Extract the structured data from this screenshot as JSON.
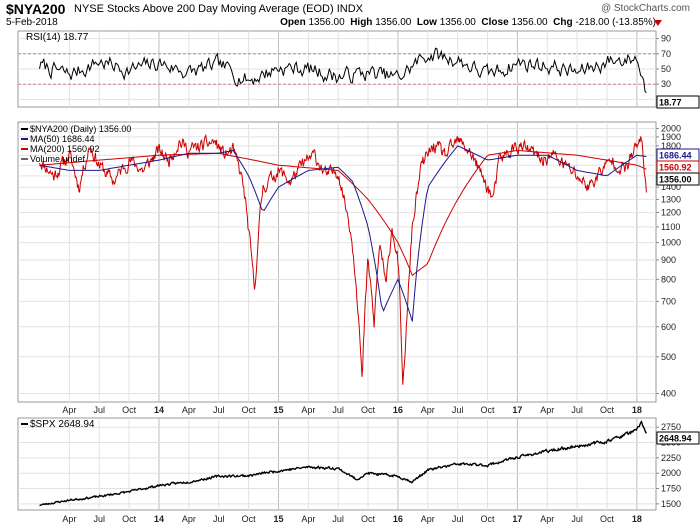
{
  "header": {
    "ticker": "$NYA200",
    "description": "NYSE Stocks Above 200 Day Moving Average (EOD)",
    "exchange": "INDX",
    "copyright": "@ StockCharts.com",
    "date": "5-Feb-2018",
    "open_label": "Open",
    "open_value": "1356.00",
    "high_label": "High",
    "high_value": "1356.00",
    "low_label": "Low",
    "low_value": "1356.00",
    "close_label": "Close",
    "close_value": "1356.00",
    "chg_label": "Chg",
    "chg_value": "-218.00 (-13.85%)",
    "down_color": "#cc0000"
  },
  "chart_data": [
    {
      "type": "line",
      "panel": "rsi",
      "legend": "RSI(14) 18.77",
      "yticks": [
        "90",
        "70",
        "50",
        "30",
        "10"
      ],
      "ylim": [
        0,
        100
      ],
      "overbought": 70,
      "oversold": 30,
      "last_value": "18.77",
      "series": [
        {
          "name": "RSI(14)",
          "x": [
            2013.0,
            2013.25,
            2013.5,
            2013.75,
            2014.0,
            2014.25,
            2014.5,
            2014.75,
            2015.0,
            2015.25,
            2015.5,
            2015.75,
            2016.0,
            2016.25,
            2016.5,
            2016.75,
            2017.0,
            2017.25,
            2017.5,
            2017.75,
            2018.0,
            2018.08
          ],
          "values": [
            55,
            42,
            60,
            48,
            58,
            45,
            55,
            35,
            52,
            50,
            40,
            45,
            38,
            70,
            62,
            42,
            58,
            55,
            45,
            60,
            65,
            18.77
          ]
        }
      ]
    },
    {
      "type": "line",
      "panel": "price",
      "scale": "log",
      "yticks": [
        "2000",
        "1900",
        "1800",
        "1700",
        "1600",
        "1500",
        "1400",
        "1300",
        "1200",
        "1100",
        "1000",
        "900",
        "800",
        "700",
        "600",
        "500",
        "400"
      ],
      "ylim": [
        380,
        2080
      ],
      "legend": [
        {
          "label": "$NYA200 (Daily) 1356.00",
          "color": "#000000"
        },
        {
          "label": "MA(50) 1686.44",
          "color": "#1a1a8c"
        },
        {
          "label": "MA(200) 1560.92",
          "color": "#cc0000"
        },
        {
          "label": "Volume undef",
          "color": "#666666"
        }
      ],
      "last_labels": [
        {
          "text": "1686.44",
          "value": 1686.44,
          "color": "#1a1a8c"
        },
        {
          "text": "1560.92",
          "value": 1560.92,
          "color": "#cc0000"
        },
        {
          "text": "1356.00",
          "value": 1356.0,
          "color": "#000000"
        }
      ],
      "series": [
        {
          "name": "$NYA200",
          "color": "#cc0000",
          "x": [
            2013.0,
            2013.12,
            2013.25,
            2013.33,
            2013.42,
            2013.5,
            2013.62,
            2013.75,
            2013.87,
            2014.0,
            2014.08,
            2014.17,
            2014.25,
            2014.37,
            2014.46,
            2014.55,
            2014.62,
            2014.7,
            2014.76,
            2014.8,
            2014.87,
            2015.0,
            2015.1,
            2015.2,
            2015.3,
            2015.4,
            2015.5,
            2015.55,
            2015.6,
            2015.65,
            2015.7,
            2015.75,
            2015.8,
            2015.85,
            2015.9,
            2015.95,
            2016.0,
            2016.04,
            2016.08,
            2016.12,
            2016.2,
            2016.3,
            2016.4,
            2016.5,
            2016.6,
            2016.7,
            2016.8,
            2016.85,
            2016.9,
            2017.0,
            2017.1,
            2017.2,
            2017.3,
            2017.4,
            2017.5,
            2017.55,
            2017.6,
            2017.7,
            2017.8,
            2017.9,
            2018.0,
            2018.04,
            2018.08
          ],
          "values": [
            1650,
            1500,
            1700,
            1400,
            1800,
            1600,
            1450,
            1650,
            1550,
            1750,
            1650,
            1850,
            1750,
            1800,
            1850,
            1700,
            1750,
            1450,
            1000,
            740,
            1400,
            1550,
            1450,
            1600,
            1700,
            1500,
            1550,
            1300,
            1100,
            800,
            420,
            900,
            600,
            1000,
            750,
            1100,
            900,
            400,
            650,
            1100,
            1600,
            1800,
            1700,
            1850,
            1750,
            1500,
            1300,
            1650,
            1700,
            1800,
            1750,
            1650,
            1700,
            1600,
            1500,
            1450,
            1400,
            1550,
            1650,
            1550,
            1800,
            1850,
            1356
          ]
        },
        {
          "name": "MA(50)",
          "color": "#1a1a8c",
          "x": [
            2013.0,
            2013.25,
            2013.5,
            2013.75,
            2014.0,
            2014.25,
            2014.5,
            2014.62,
            2014.75,
            2014.87,
            2015.0,
            2015.25,
            2015.5,
            2015.62,
            2015.75,
            2015.87,
            2016.0,
            2016.12,
            2016.25,
            2016.5,
            2016.75,
            2017.0,
            2017.25,
            2017.5,
            2017.75,
            2018.0,
            2018.08
          ],
          "values": [
            1600,
            1550,
            1550,
            1600,
            1650,
            1720,
            1720,
            1750,
            1500,
            1200,
            1400,
            1550,
            1580,
            1450,
            1100,
            650,
            800,
            620,
            1400,
            1800,
            1650,
            1700,
            1700,
            1550,
            1500,
            1700,
            1686.44
          ]
        },
        {
          "name": "MA(200)",
          "color": "#cc0000",
          "x": [
            2013.0,
            2013.5,
            2014.0,
            2014.5,
            2015.0,
            2015.5,
            2015.75,
            2016.0,
            2016.12,
            2016.25,
            2016.5,
            2016.75,
            2017.0,
            2017.5,
            2018.0,
            2018.08
          ],
          "values": [
            1600,
            1650,
            1700,
            1720,
            1600,
            1550,
            1300,
            1000,
            820,
            880,
            1300,
            1700,
            1750,
            1700,
            1600,
            1560.92
          ]
        }
      ]
    },
    {
      "type": "line",
      "panel": "spx",
      "legend": "$SPX 2648.94",
      "yticks": [
        "2750",
        "2500",
        "2250",
        "2000",
        "1750",
        "1500"
      ],
      "ylim": [
        1400,
        2900
      ],
      "last_value": "2648.94",
      "series": [
        {
          "name": "$SPX",
          "color": "#000000",
          "x": [
            2013.0,
            2013.25,
            2013.5,
            2013.75,
            2014.0,
            2014.25,
            2014.5,
            2014.75,
            2015.0,
            2015.25,
            2015.5,
            2015.65,
            2015.75,
            2016.0,
            2016.12,
            2016.25,
            2016.5,
            2016.75,
            2017.0,
            2017.25,
            2017.5,
            2017.75,
            2018.0,
            2018.04,
            2018.08
          ],
          "values": [
            1480,
            1560,
            1620,
            1700,
            1800,
            1860,
            1950,
            1960,
            2040,
            2100,
            2080,
            1900,
            2000,
            1950,
            1860,
            2050,
            2150,
            2130,
            2260,
            2360,
            2440,
            2520,
            2700,
            2830,
            2648.94
          ]
        }
      ]
    }
  ],
  "x_axis": {
    "labels": [
      {
        "text": "Apr",
        "t": 2013.25,
        "bold": false
      },
      {
        "text": "Jul",
        "t": 2013.5,
        "bold": false
      },
      {
        "text": "Oct",
        "t": 2013.75,
        "bold": false
      },
      {
        "text": "14",
        "t": 2014.0,
        "bold": true
      },
      {
        "text": "Apr",
        "t": 2014.25,
        "bold": false
      },
      {
        "text": "Jul",
        "t": 2014.5,
        "bold": false
      },
      {
        "text": "Oct",
        "t": 2014.75,
        "bold": false
      },
      {
        "text": "15",
        "t": 2015.0,
        "bold": true
      },
      {
        "text": "Apr",
        "t": 2015.25,
        "bold": false
      },
      {
        "text": "Jul",
        "t": 2015.5,
        "bold": false
      },
      {
        "text": "Oct",
        "t": 2015.75,
        "bold": false
      },
      {
        "text": "16",
        "t": 2016.0,
        "bold": true
      },
      {
        "text": "Apr",
        "t": 2016.25,
        "bold": false
      },
      {
        "text": "Jul",
        "t": 2016.5,
        "bold": false
      },
      {
        "text": "Oct",
        "t": 2016.75,
        "bold": false
      },
      {
        "text": "17",
        "t": 2017.0,
        "bold": true
      },
      {
        "text": "Apr",
        "t": 2017.25,
        "bold": false
      },
      {
        "text": "Jul",
        "t": 2017.5,
        "bold": false
      },
      {
        "text": "Oct",
        "t": 2017.75,
        "bold": false
      },
      {
        "text": "18",
        "t": 2018.0,
        "bold": true
      }
    ]
  }
}
